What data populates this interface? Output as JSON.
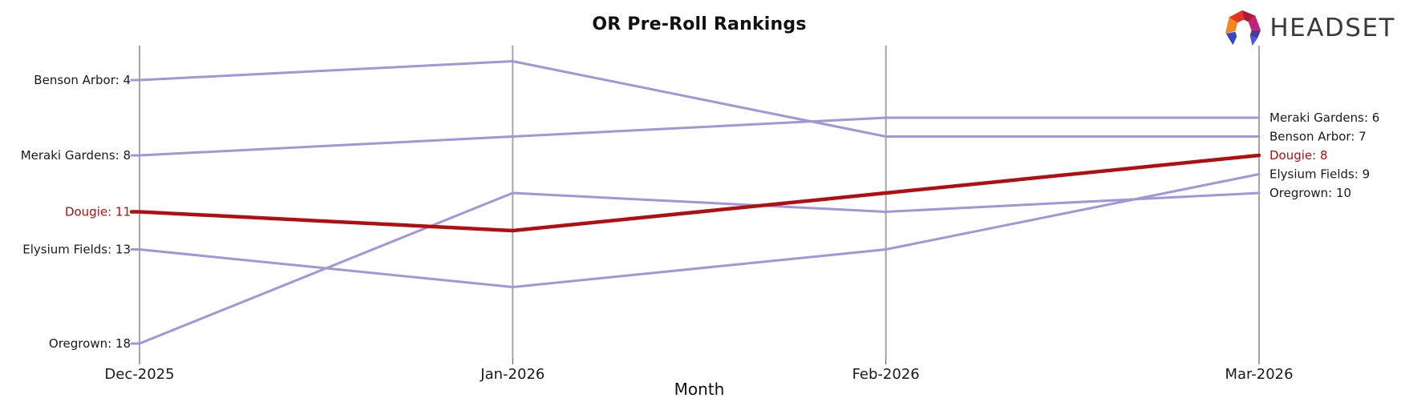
{
  "header": {
    "title": "OR Pre-Roll Rankings",
    "logo_text": "HEADSET"
  },
  "chart_data": {
    "type": "line",
    "subtype": "bump-rank-chart",
    "title": "OR Pre-Roll Rankings",
    "xlabel": "Month",
    "x": [
      "Dec-2025",
      "Jan-2026",
      "Feb-2026",
      "Mar-2026"
    ],
    "series": [
      {
        "name": "Benson Arbor",
        "values": [
          4,
          3,
          7,
          7
        ],
        "highlighted": false
      },
      {
        "name": "Meraki Gardens",
        "values": [
          8,
          7,
          6,
          6
        ],
        "highlighted": false
      },
      {
        "name": "Elysium Fields",
        "values": [
          13,
          15,
          13,
          9
        ],
        "highlighted": false
      },
      {
        "name": "Oregrown",
        "values": [
          18,
          10,
          11,
          10
        ],
        "highlighted": false
      },
      {
        "name": "Dougie",
        "values": [
          11,
          12,
          10,
          8
        ],
        "highlighted": true
      }
    ],
    "left_labels": [
      "Benson Arbor: 4",
      "Meraki Gardens: 8",
      "Dougie: 11",
      "Elysium Fields: 13",
      "Oregrown: 18"
    ],
    "right_labels": [
      "Meraki Gardens: 6",
      "Benson Arbor: 7",
      "Dougie: 8",
      "Elysium Fields: 9",
      "Oregrown: 10"
    ],
    "ylim": [
      2.2,
      18.8
    ],
    "y_inverted": true,
    "grid": "vertical-axis-per-month",
    "legend": "none",
    "colors": {
      "line_default": "#a295d8",
      "line_highlight": "#b20d10",
      "axis": "#a6a6a6",
      "tick": "#444444",
      "text": "#1a1a1a",
      "logo_text": "#3a3a3a"
    }
  }
}
